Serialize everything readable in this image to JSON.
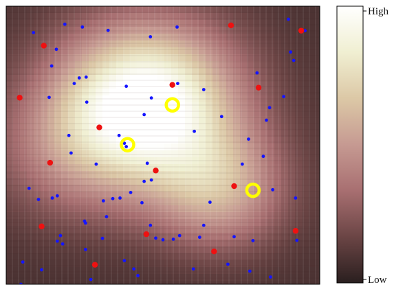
{
  "chart_data": {
    "type": "heatmap",
    "grid": true,
    "colorscale": [
      "#2a1f1f",
      "#6b4545",
      "#a86f71",
      "#c69a92",
      "#dcc8a6",
      "#f0efd2",
      "#ffffff"
    ],
    "colorbar": {
      "high_label": "High",
      "low_label": "Low",
      "placement": "right"
    },
    "field_peaks": [
      {
        "x": 0.45,
        "y": 0.35,
        "amplitude": 1.0,
        "spread": 0.2
      },
      {
        "x": 0.68,
        "y": 0.66,
        "amplitude": 0.45,
        "spread": 0.15
      },
      {
        "x": 0.2,
        "y": 0.52,
        "amplitude": 0.25,
        "spread": 0.18
      }
    ],
    "blue_points": [
      [
        0.087,
        0.095
      ],
      [
        0.187,
        0.065
      ],
      [
        0.243,
        0.075
      ],
      [
        0.325,
        0.087
      ],
      [
        0.46,
        0.11
      ],
      [
        0.545,
        0.075
      ],
      [
        0.9,
        0.047
      ],
      [
        0.953,
        0.088
      ],
      [
        0.907,
        0.165
      ],
      [
        0.917,
        0.195
      ],
      [
        0.16,
        0.155
      ],
      [
        0.145,
        0.215
      ],
      [
        0.233,
        0.258
      ],
      [
        0.217,
        0.278
      ],
      [
        0.255,
        0.255
      ],
      [
        0.383,
        0.288
      ],
      [
        0.547,
        0.278
      ],
      [
        0.63,
        0.3
      ],
      [
        0.8,
        0.24
      ],
      [
        0.885,
        0.325
      ],
      [
        0.84,
        0.365
      ],
      [
        0.83,
        0.41
      ],
      [
        0.137,
        0.328
      ],
      [
        0.257,
        0.345
      ],
      [
        0.2,
        0.465
      ],
      [
        0.36,
        0.465
      ],
      [
        0.377,
        0.493
      ],
      [
        0.44,
        0.39
      ],
      [
        0.463,
        0.33
      ],
      [
        0.6,
        0.45
      ],
      [
        0.687,
        0.397
      ],
      [
        0.753,
        0.568
      ],
      [
        0.82,
        0.54
      ],
      [
        0.773,
        0.478
      ],
      [
        0.207,
        0.528
      ],
      [
        0.287,
        0.568
      ],
      [
        0.383,
        0.505
      ],
      [
        0.45,
        0.565
      ],
      [
        0.463,
        0.625
      ],
      [
        0.44,
        0.63
      ],
      [
        0.397,
        0.67
      ],
      [
        0.31,
        0.7
      ],
      [
        0.32,
        0.757
      ],
      [
        0.073,
        0.655
      ],
      [
        0.103,
        0.695
      ],
      [
        0.147,
        0.69
      ],
      [
        0.163,
        0.682
      ],
      [
        0.34,
        0.692
      ],
      [
        0.363,
        0.69
      ],
      [
        0.433,
        0.707
      ],
      [
        0.46,
        0.788
      ],
      [
        0.553,
        0.825
      ],
      [
        0.63,
        0.788
      ],
      [
        0.65,
        0.705
      ],
      [
        0.85,
        0.66
      ],
      [
        0.923,
        0.69
      ],
      [
        0.25,
        0.773
      ],
      [
        0.253,
        0.78
      ],
      [
        0.307,
        0.835
      ],
      [
        0.173,
        0.825
      ],
      [
        0.163,
        0.845
      ],
      [
        0.18,
        0.855
      ],
      [
        0.253,
        0.875
      ],
      [
        0.477,
        0.834
      ],
      [
        0.5,
        0.84
      ],
      [
        0.533,
        0.838
      ],
      [
        0.617,
        0.831
      ],
      [
        0.727,
        0.829
      ],
      [
        0.787,
        0.843
      ],
      [
        0.927,
        0.842
      ],
      [
        0.377,
        0.915
      ],
      [
        0.407,
        0.945
      ],
      [
        0.597,
        0.945
      ],
      [
        0.113,
        0.948
      ],
      [
        0.053,
        0.92
      ],
      [
        0.707,
        0.928
      ],
      [
        0.777,
        0.953
      ],
      [
        0.843,
        0.974
      ],
      [
        0.047,
        1.0
      ],
      [
        0.27,
        0.983
      ],
      [
        0.42,
        0.969
      ],
      [
        0.683,
        1.01
      ],
      [
        0.597,
        1.01
      ]
    ],
    "red_points": [
      [
        0.12,
        0.142
      ],
      [
        0.941,
        0.088
      ],
      [
        0.717,
        0.069
      ],
      [
        0.805,
        0.293
      ],
      [
        0.043,
        0.329
      ],
      [
        0.297,
        0.436
      ],
      [
        0.53,
        0.283
      ],
      [
        0.14,
        0.563
      ],
      [
        0.477,
        0.591
      ],
      [
        0.727,
        0.647
      ],
      [
        0.113,
        0.792
      ],
      [
        0.447,
        0.82
      ],
      [
        0.923,
        0.808
      ],
      [
        0.663,
        0.882
      ],
      [
        0.283,
        0.93
      ]
    ],
    "yellow_rings": [
      [
        0.53,
        0.355
      ],
      [
        0.387,
        0.498
      ],
      [
        0.787,
        0.662
      ]
    ]
  }
}
